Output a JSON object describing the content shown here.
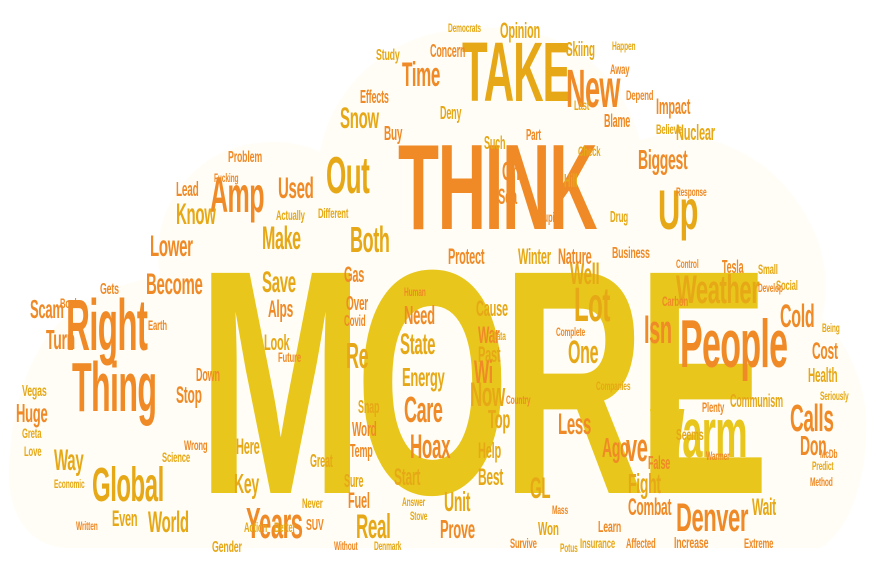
{
  "palette": {
    "yellow": "#e8c61b",
    "gold": "#e6a816",
    "orange": "#ef8a27",
    "deep_orange": "#e97c20",
    "light_yellow": "#f1dc6b",
    "beige": "#e9c78a",
    "peach": "#f2a55f",
    "salmon": "#ef9a70"
  },
  "words": {
    "more": "MORE",
    "think": "THINK",
    "take": "TAKE",
    "people": "People",
    "right": "Right",
    "thing": "Thing",
    "warm": "Warm",
    "weather": "Weather",
    "global": "Global",
    "years": "Years",
    "denver": "Denver",
    "amp": "Amp",
    "out": "Out",
    "new": "New",
    "up": "Up",
    "both": "Both",
    "care": "Care",
    "hoax": "Hoax",
    "now": "Now",
    "less": "Less",
    "energy": "Energy",
    "calls": "Calls",
    "cold": "Cold",
    "make": "Make",
    "lower": "Lower",
    "become": "Become",
    "save": "Save",
    "used": "Used",
    "know": "Know",
    "world": "World",
    "way": "Way",
    "turn": "Turn",
    "scam": "Scam",
    "snow": "Snow",
    "biggest": "Biggest",
    "lot": "Lot",
    "isn": "Isn",
    "ve": "ve",
    "ago": "Ago",
    "one": "One",
    "fight": "Fight",
    "combat": "Combat",
    "state": "State",
    "protect": "Protect",
    "nature": "Nature",
    "key": "Key",
    "even": "Even",
    "real": "Real",
    "prove": "Prove",
    "unit": "Unit",
    "best": "Best",
    "start": "Start",
    "huge": "Huge",
    "here": "Here",
    "lead": "Lead",
    "nuclear": "Nuclear",
    "winter": "Winter",
    "tesla": "Tesla",
    "cost": "Cost",
    "health": "Health",
    "communism": "Communism",
    "wait": "Wait",
    "don": "Don",
    "warmer": "Warmer",
    "concern": "Concern",
    "opinion": "Opinion",
    "effects": "Effects",
    "time": "Time",
    "skiing": "Skiing",
    "impact": "Impact",
    "gas": "Gas",
    "stop": "Stop",
    "gender": "Gender",
    "years_small": "Years",
    "look": "Look",
    "alps": "Alps",
    "over": "Over",
    "re": "Re",
    "war": "War",
    "cause": "Cause",
    "need": "Need",
    "well": "Well",
    "data": "Data",
    "past": "Past",
    "top": "Top",
    "wi": "Wi",
    "help": "Help",
    "gl": "GL",
    "increase": "Increase",
    "survive": "Survive",
    "insurance": "Insurance",
    "affected": "Affected",
    "extreme": "Extreme",
    "learn": "Learn",
    "won": "Won",
    "mass": "Mass",
    "fuel": "Fuel",
    "sure": "Sure",
    "word": "Word",
    "temp": "Temp",
    "great": "Great",
    "snap": "Snap",
    "covid": "Covid",
    "human": "Human",
    "action": "Action",
    "better": "Better",
    "suv": "SUV",
    "never": "Never",
    "future": "Future",
    "down": "Down",
    "problem": "Problem",
    "study": "Study",
    "buy": "Buy",
    "deny": "Deny",
    "blame": "Blame",
    "believe": "Believe",
    "such": "Such",
    "part": "Part",
    "check": "Check",
    "sea": "Sea",
    "drug": "Drug",
    "oh": "Oh",
    "hill": "Hill",
    "business": "Business",
    "seems": "Seems",
    "plenty": "Plenty",
    "false": "False",
    "social": "Social",
    "develop": "Develop",
    "small": "Small",
    "carbon": "Carbon",
    "control": "Control",
    "response": "Response",
    "being": "Being",
    "seriously": "Seriously",
    "mcdb": "McDb",
    "predict": "Predict",
    "method": "Method",
    "wrong": "Wrong",
    "science": "Science",
    "actually": "Actually",
    "vegas": "Vegas",
    "love": "Love",
    "book": "Book",
    "gets": "Gets",
    "earth": "Earth",
    "greta": "Greta",
    "different": "Different",
    "stupid": "Stupid",
    "country": "Country",
    "answer": "Answer",
    "stove": "Stove",
    "economic": "Economic",
    "written": "Written",
    "fucking": "Fucking",
    "democrats": "Democrats",
    "happen": "Happen",
    "depend": "Depend",
    "last": "Last",
    "away": "Away",
    "potus": "Potus",
    "without": "Without",
    "denmark": "Denmark",
    "complete": "Complete",
    "companies": "Companies"
  }
}
